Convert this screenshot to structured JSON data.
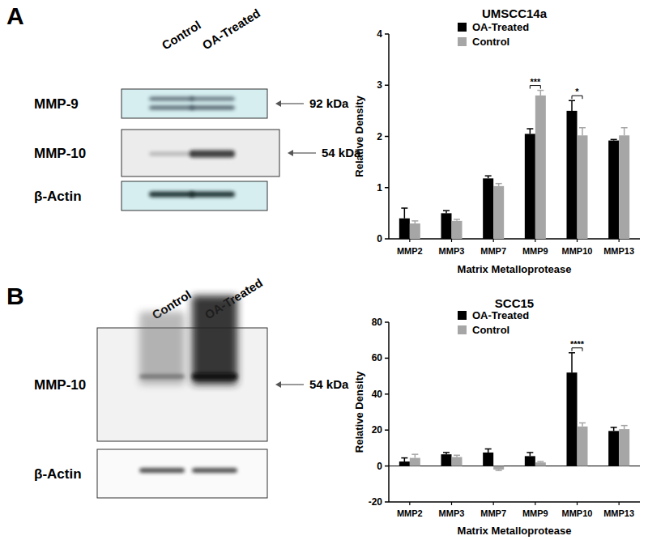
{
  "chart_data": [
    {
      "type": "bar",
      "title": "UMSCC14a",
      "x_label": "Matrix Metalloprotease",
      "y_label": "Relative Density",
      "categories": [
        "MMP2",
        "MMP3",
        "MMP7",
        "MMP9",
        "MMP10",
        "MMP13"
      ],
      "series": [
        {
          "name": "OA-Treated",
          "color": "#000000",
          "values": [
            0.4,
            0.5,
            1.18,
            2.05,
            2.5,
            1.92
          ],
          "errors": [
            0.2,
            0.05,
            0.05,
            0.1,
            0.2,
            0.02
          ]
        },
        {
          "name": "Control",
          "color": "#a6a6a6",
          "values": [
            0.3,
            0.35,
            1.03,
            2.8,
            2.02,
            2.02
          ],
          "errors": [
            0.05,
            0.03,
            0.05,
            0.1,
            0.15,
            0.15
          ]
        }
      ],
      "ylim": [
        0,
        4
      ],
      "yticks": [
        0,
        1,
        2,
        3,
        4
      ],
      "legend": "top",
      "annotations": [
        {
          "text": "***",
          "category": "MMP9"
        },
        {
          "text": "*",
          "category": "MMP10"
        }
      ]
    },
    {
      "type": "bar",
      "title": "SCC15",
      "x_label": "Matrix Metalloprotease",
      "y_label": "Relative Density",
      "categories": [
        "MMP2",
        "MMP3",
        "MMP7",
        "MMP9",
        "MMP10",
        "MMP13"
      ],
      "series": [
        {
          "name": "OA-Treated",
          "color": "#000000",
          "values": [
            2.5,
            6.5,
            7.5,
            5.5,
            52,
            19.5
          ],
          "errors": [
            2,
            1,
            2,
            2,
            11,
            2
          ]
        },
        {
          "name": "Control",
          "color": "#a6a6a6",
          "values": [
            4.5,
            5,
            -2,
            2,
            22,
            20.5
          ],
          "errors": [
            2,
            1,
            0.5,
            0.5,
            2,
            2
          ]
        }
      ],
      "ylim": [
        -20,
        80
      ],
      "yticks": [
        -20,
        0,
        20,
        40,
        60,
        80
      ],
      "legend": "top",
      "annotations": [
        {
          "text": "****",
          "category": "MMP10"
        }
      ]
    }
  ],
  "blots": [
    {
      "letter": "A",
      "lanes": [
        "Control",
        "OA-Treated"
      ],
      "rows": [
        {
          "label": "MMP-9",
          "size": "92 kDa"
        },
        {
          "label": "MMP-10",
          "size": "54 kDa"
        },
        {
          "label": "β-Actin"
        }
      ]
    },
    {
      "letter": "B",
      "lanes": [
        "Control",
        "OA-Treated"
      ],
      "rows": [
        {
          "label": "MMP-10",
          "size": "54 kDa"
        },
        {
          "label": "β-Actin"
        }
      ]
    }
  ]
}
